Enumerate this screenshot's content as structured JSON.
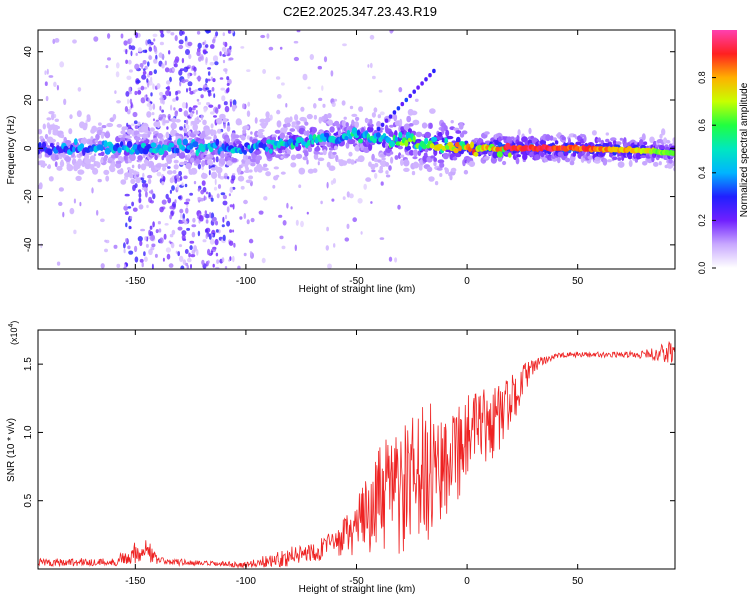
{
  "title": "C2E2.2025.347.23.43.R19",
  "chart_data": [
    {
      "type": "heatmap",
      "title": "C2E2.2025.347.23.43.R19",
      "xlabel": "Height of straight line (km)",
      "ylabel": "Frequency (Hz)",
      "xlim": [
        -194,
        94
      ],
      "ylim": [
        -50,
        49
      ],
      "x_ticks": [
        -150,
        -100,
        -50,
        0,
        50
      ],
      "x_tick_labels": [
        "-150",
        "-100",
        "-50",
        "0",
        "50"
      ],
      "y_ticks": [
        -40,
        -20,
        0,
        20,
        40
      ],
      "y_tick_labels": [
        "-40",
        "-20",
        "0",
        "20",
        "40"
      ],
      "colorbar": {
        "label": "Normalized spectral amplitude",
        "range": [
          0,
          1
        ],
        "ticks": [
          0.0,
          0.2,
          0.4,
          0.6,
          0.8
        ],
        "tick_labels": [
          "0.0",
          "0.2",
          "0.4",
          "0.6",
          "0.8"
        ],
        "colors": [
          "#ffffff",
          "#c8a8ff",
          "#7020ff",
          "#2020ff",
          "#00b4ff",
          "#00e8c0",
          "#20ff40",
          "#c8ff00",
          "#ffb000",
          "#ff2020",
          "#ff40b0"
        ]
      },
      "ridge": {
        "description_points_x": [
          -194,
          -150,
          -100,
          -75,
          -50,
          -30,
          -10,
          0,
          20,
          50,
          80,
          94
        ],
        "center_freq_hz": [
          0,
          0,
          0,
          3,
          5,
          3,
          1,
          0,
          0,
          0,
          -1,
          -2
        ],
        "peak_amplitude": [
          0.35,
          0.5,
          0.5,
          0.55,
          0.55,
          0.65,
          0.8,
          0.85,
          0.95,
          0.9,
          0.75,
          0.6
        ]
      },
      "scatter_band_x": [
        -155,
        -105
      ],
      "diagonal_streak": {
        "x": [
          -40,
          -15
        ],
        "freq_hz": [
          8,
          32
        ]
      }
    },
    {
      "type": "line",
      "xlabel": "Height of straight line (km)",
      "ylabel": "SNR (10 * v/v)",
      "y_scale_label": "(x10",
      "y_scale_exponent": "4",
      "xlim": [
        -194,
        94
      ],
      "ylim": [
        0,
        1.75
      ],
      "x_ticks": [
        -150,
        -100,
        -50,
        0,
        50
      ],
      "x_tick_labels": [
        "-150",
        "-100",
        "-50",
        "0",
        "50"
      ],
      "y_ticks": [
        0.5,
        1.0,
        1.5
      ],
      "y_tick_labels": [
        "0.5",
        "1.0",
        "1.5"
      ],
      "series": [
        {
          "name": "SNR",
          "color": "#ee2222",
          "envelope_x": [
            -194,
            -160,
            -150,
            -145,
            -140,
            -120,
            -100,
            -90,
            -80,
            -70,
            -60,
            -50,
            -45,
            -40,
            -35,
            -30,
            -25,
            -20,
            -15,
            -10,
            -5,
            0,
            5,
            10,
            15,
            20,
            25,
            30,
            35,
            40,
            50,
            60,
            70,
            80,
            90,
            94
          ],
          "envelope_mean": [
            0.05,
            0.05,
            0.12,
            0.15,
            0.06,
            0.04,
            0.03,
            0.06,
            0.09,
            0.13,
            0.18,
            0.3,
            0.42,
            0.5,
            0.55,
            0.55,
            0.6,
            0.68,
            0.72,
            0.82,
            0.88,
            0.95,
            1.0,
            1.05,
            1.12,
            1.22,
            1.38,
            1.48,
            1.53,
            1.56,
            1.57,
            1.57,
            1.57,
            1.57,
            1.58,
            1.6
          ],
          "envelope_noise": [
            0.03,
            0.03,
            0.08,
            0.1,
            0.03,
            0.02,
            0.02,
            0.05,
            0.07,
            0.08,
            0.1,
            0.2,
            0.3,
            0.38,
            0.45,
            0.5,
            0.52,
            0.52,
            0.5,
            0.45,
            0.4,
            0.35,
            0.32,
            0.28,
            0.25,
            0.2,
            0.12,
            0.06,
            0.03,
            0.02,
            0.02,
            0.02,
            0.02,
            0.03,
            0.08,
            0.12
          ]
        }
      ]
    }
  ]
}
